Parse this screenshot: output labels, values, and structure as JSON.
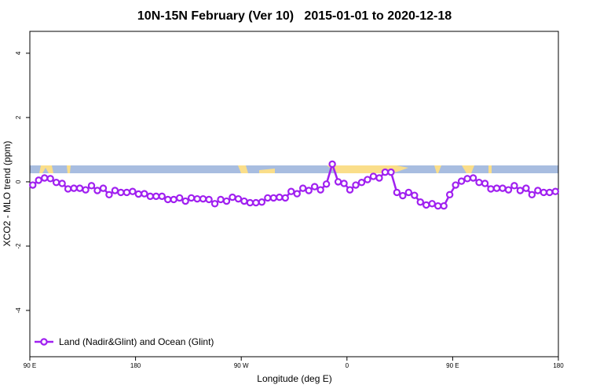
{
  "chart_data": {
    "type": "line",
    "title": "10N-15N February (Ver 10)   2015-01-01 to 2020-12-18",
    "xlabel": "Longitude (deg E)",
    "ylabel": "XCO2 - MLO trend (ppm)",
    "x": [
      92.5,
      97.5,
      102.5,
      107.5,
      112.5,
      117.5,
      122.5,
      127.5,
      132.5,
      137.5,
      142.5,
      147.5,
      152.5,
      157.5,
      162.5,
      167.5,
      172.5,
      177.5,
      182.5,
      187.5,
      192.5,
      197.5,
      202.5,
      207.5,
      212.5,
      217.5,
      222.5,
      227.5,
      232.5,
      237.5,
      242.5,
      247.5,
      252.5,
      257.5,
      262.5,
      267.5,
      272.5,
      277.5,
      282.5,
      287.5,
      292.5,
      297.5,
      302.5,
      307.5,
      312.5,
      317.5,
      322.5,
      327.5,
      332.5,
      337.5,
      342.5,
      347.5,
      352.5,
      357.5,
      362.5,
      367.5,
      372.5,
      377.5,
      382.5,
      387.5,
      392.5,
      397.5,
      402.5,
      407.5,
      412.5,
      417.5,
      422.5,
      427.5,
      432.5,
      437.5,
      442.5,
      447.5,
      452.5,
      457.5,
      462.5,
      467.5,
      472.5,
      477.5,
      482.5,
      487.5,
      492.5,
      497.5,
      502.5,
      507.5,
      512.5,
      517.5,
      522.5,
      527.5,
      532.5,
      537.5
    ],
    "series": [
      {
        "name": "Land (Nadir&Glint) and Ocean (Glint)",
        "color": "#a020f0",
        "values": [
          -0.1,
          0.05,
          0.12,
          0.1,
          -0.02,
          -0.05,
          -0.22,
          -0.2,
          -0.2,
          -0.25,
          -0.12,
          -0.27,
          -0.2,
          -0.4,
          -0.27,
          -0.33,
          -0.33,
          -0.3,
          -0.38,
          -0.37,
          -0.45,
          -0.45,
          -0.45,
          -0.55,
          -0.55,
          -0.5,
          -0.6,
          -0.5,
          -0.53,
          -0.53,
          -0.55,
          -0.68,
          -0.55,
          -0.6,
          -0.48,
          -0.53,
          -0.6,
          -0.65,
          -0.65,
          -0.63,
          -0.5,
          -0.5,
          -0.48,
          -0.5,
          -0.3,
          -0.37,
          -0.2,
          -0.27,
          -0.15,
          -0.25,
          -0.07,
          0.55,
          0,
          -0.05,
          -0.25,
          -0.1,
          -0.02,
          0.07,
          0.17,
          0.12,
          0.3,
          0.3,
          -0.33,
          -0.43,
          -0.33,
          -0.42,
          -0.63,
          -0.72,
          -0.68,
          -0.75,
          -0.75,
          -0.4,
          -0.1,
          0.02,
          0.1,
          0.12,
          -0.02,
          -0.05,
          -0.22,
          -0.2,
          -0.2,
          -0.25,
          -0.12,
          -0.27,
          -0.2,
          -0.4,
          -0.27,
          -0.33,
          -0.33,
          -0.3
        ]
      }
    ],
    "xlim": [
      90,
      540
    ],
    "xticks": [
      {
        "value": 90,
        "label": "90 E"
      },
      {
        "value": 180,
        "label": "180"
      },
      {
        "value": 270,
        "label": "90 W"
      },
      {
        "value": 360,
        "label": "0"
      },
      {
        "value": 450,
        "label": "90 E"
      },
      {
        "value": 540,
        "label": "180"
      }
    ],
    "ylim": [
      -5.44,
      4.68
    ],
    "yticks": [
      -4,
      -2,
      0,
      2,
      4
    ],
    "legend": "bottom-left"
  }
}
